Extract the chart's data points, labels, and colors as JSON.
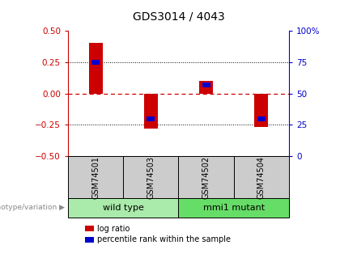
{
  "title": "GDS3014 / 4043",
  "samples": [
    "GSM74501",
    "GSM74503",
    "GSM74502",
    "GSM74504"
  ],
  "log_ratios": [
    0.4,
    -0.28,
    0.1,
    -0.27
  ],
  "percentile_ranks": [
    75,
    30,
    57,
    30
  ],
  "groups": [
    {
      "label": "wild type",
      "indices": [
        0,
        1
      ],
      "color": "#aaeaaa"
    },
    {
      "label": "mmi1 mutant",
      "indices": [
        2,
        3
      ],
      "color": "#66dd66"
    }
  ],
  "ylim_left": [
    -0.5,
    0.5
  ],
  "ylim_right": [
    0,
    100
  ],
  "yticks_left": [
    -0.5,
    -0.25,
    0,
    0.25,
    0.5
  ],
  "yticks_right": [
    0,
    25,
    50,
    75,
    100
  ],
  "left_axis_color": "#cc0000",
  "right_axis_color": "#0000cc",
  "bar_color_red": "#cc0000",
  "bar_color_blue": "#0000cc",
  "sample_box_color": "#cccccc",
  "hline_zero_color": "#cc0000",
  "hline_quarter_color": "#000000",
  "bar_width": 0.25,
  "blue_bar_width": 0.15,
  "blue_bar_height": 0.04,
  "genotype_label": "genotype/variation",
  "legend_red": "log ratio",
  "legend_blue": "percentile rank within the sample",
  "title_fontsize": 10,
  "tick_fontsize": 7.5,
  "label_fontsize": 7,
  "group_fontsize": 8
}
